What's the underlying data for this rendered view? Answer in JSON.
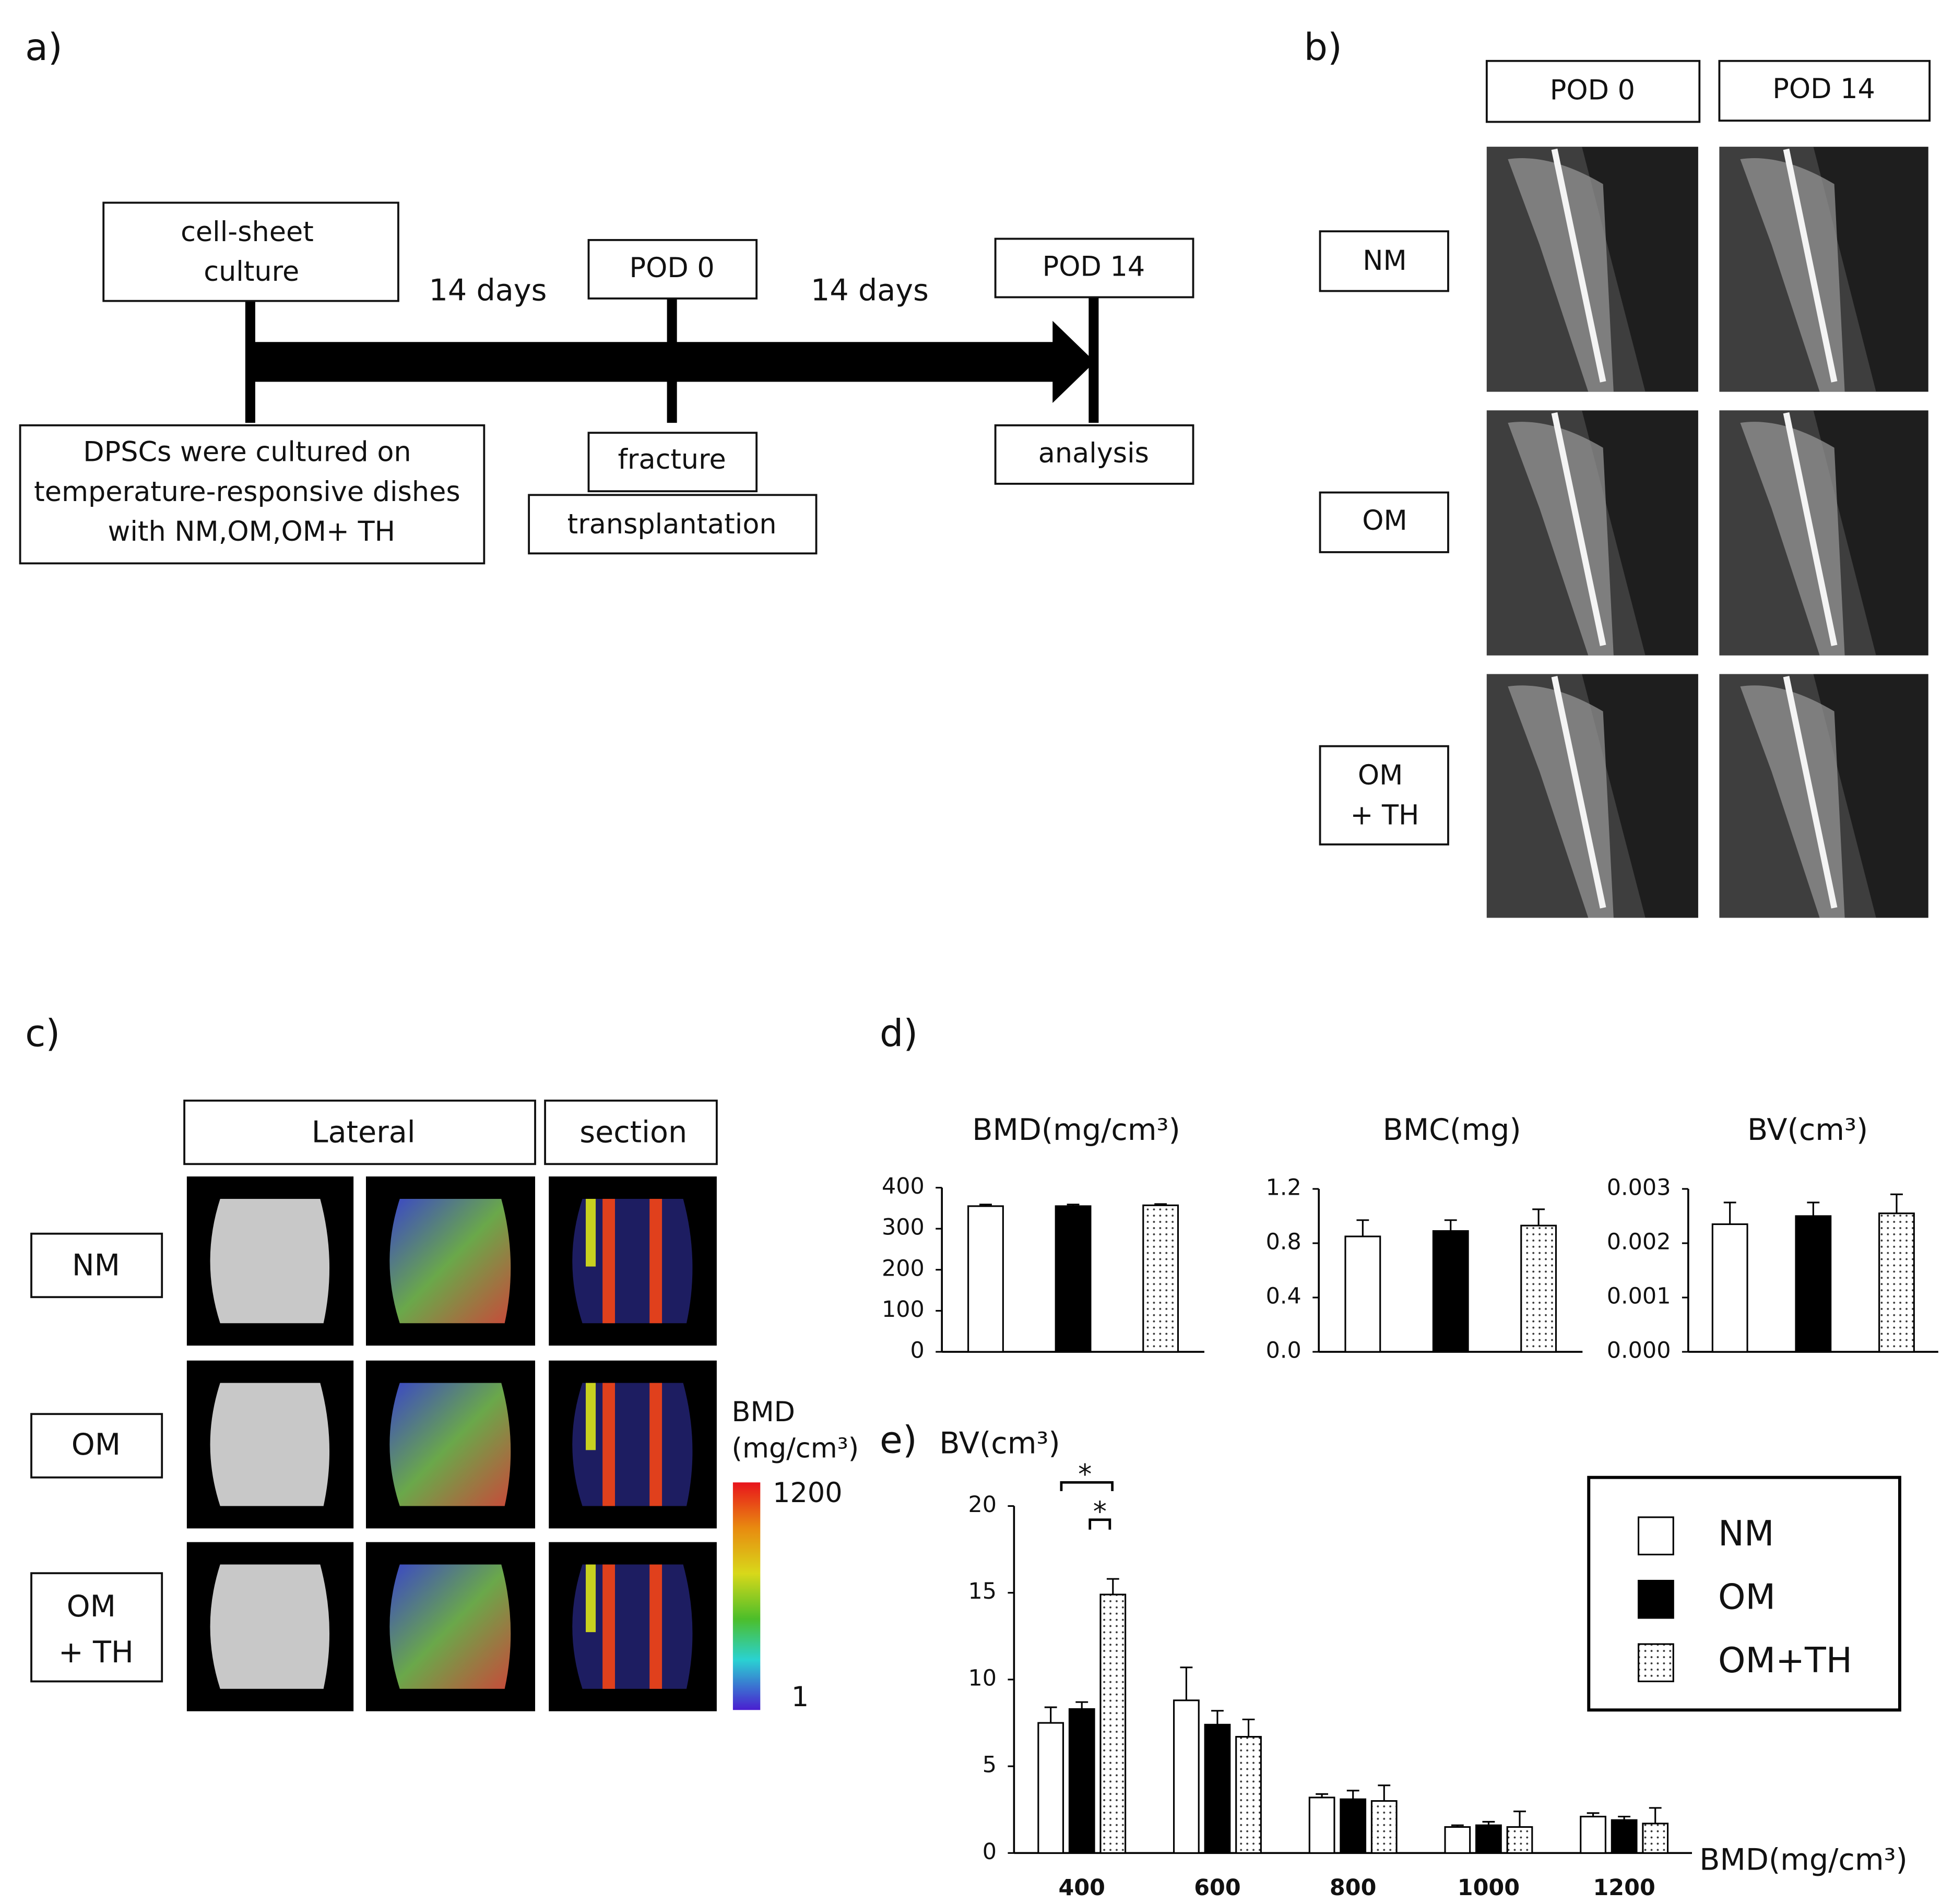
{
  "panel_labels": [
    "a)",
    "b)",
    "c)",
    "d)",
    "e)"
  ],
  "timeline": {
    "culture": [
      "cell-sheet",
      "culture"
    ],
    "interval_1": "14 days",
    "pod0": "POD 0",
    "interval_2": "14 days",
    "pod14": "POD 14",
    "culture_note": [
      "DPSCs were cultured on",
      "temperature-responsive dishes",
      "with NM,OM,OM+ TH"
    ],
    "fracture": "fracture",
    "transplantation": "transplantation",
    "analysis": "analysis"
  },
  "xray": {
    "columns": [
      "POD 0",
      "POD 14"
    ],
    "rows": [
      [
        "NM"
      ],
      [
        "OM"
      ],
      [
        "OM",
        "+ TH"
      ]
    ]
  },
  "microct": {
    "columns": [
      "Lateral",
      "section"
    ],
    "rows": [
      [
        "NM"
      ],
      [
        "OM"
      ],
      [
        "OM",
        "+ TH"
      ]
    ],
    "colorbar": {
      "title": [
        "BMD",
        "(mg/cm³)"
      ],
      "max": 1200,
      "min": 1
    }
  },
  "chart_data": [
    {
      "type": "bar",
      "title": "BMD(mg/cm³)",
      "categories": [
        null,
        null,
        null
      ],
      "values": [
        355,
        355,
        357
      ],
      "errors": [
        4,
        4,
        3
      ],
      "colors": [
        "#ffffff",
        "#000000",
        "#ffffff"
      ],
      "patterns": [
        "solid",
        "solid",
        "dots"
      ],
      "ylim": [
        0,
        400
      ],
      "yticks": [
        0,
        100,
        200,
        300,
        400
      ]
    },
    {
      "type": "bar",
      "title": "BMC(mg)",
      "categories": [
        null,
        null,
        null
      ],
      "values": [
        0.85,
        0.89,
        0.93
      ],
      "errors": [
        0.12,
        0.08,
        0.12
      ],
      "colors": [
        "#ffffff",
        "#000000",
        "#ffffff"
      ],
      "patterns": [
        "solid",
        "solid",
        "dots"
      ],
      "ylim": [
        0,
        1.2
      ],
      "yticks": [
        {
          "value": 0,
          "label": "0.0"
        },
        0.4,
        0.8,
        1.2
      ]
    },
    {
      "type": "bar",
      "title": "BV(cm³)",
      "categories": [
        null,
        null,
        null
      ],
      "values": [
        0.00235,
        0.0025,
        0.00255
      ],
      "errors": [
        0.0004,
        0.00025,
        0.00035
      ],
      "colors": [
        "#ffffff",
        "#000000",
        "#ffffff"
      ],
      "patterns": [
        "solid",
        "solid",
        "dots"
      ],
      "ylim": [
        0,
        0.003
      ],
      "yticks": [
        {
          "value": 0,
          "label": "0.000"
        },
        0.001,
        0.002,
        0.003
      ]
    },
    {
      "type": "grouped_bar",
      "ylabel": "BV(cm³)",
      "xlabel": "BMD(mg/cm³)",
      "categories": [
        "400",
        "600",
        "800",
        "1000",
        "1200"
      ],
      "series": [
        {
          "name": "NM",
          "color": "#ffffff",
          "pattern": "solid",
          "values": [
            7.5,
            8.8,
            3.2,
            1.5,
            2.1
          ],
          "errors": [
            0.9,
            1.9,
            0.2,
            0.1,
            0.2
          ]
        },
        {
          "name": "OM",
          "color": "#000000",
          "pattern": "solid",
          "values": [
            8.3,
            7.4,
            3.1,
            1.6,
            1.9
          ],
          "errors": [
            0.4,
            0.8,
            0.5,
            0.2,
            0.2
          ]
        },
        {
          "name": "OM+TH",
          "color": "#ffffff",
          "pattern": "dots",
          "values": [
            14.9,
            6.7,
            3.0,
            1.5,
            1.7
          ],
          "errors": [
            0.9,
            1.0,
            0.9,
            0.9,
            0.9
          ]
        }
      ],
      "annotations": [
        "*",
        "*"
      ],
      "ylim": [
        0,
        20
      ],
      "yticks": [
        0,
        5,
        10,
        15,
        20
      ],
      "legend": "upper right"
    }
  ]
}
